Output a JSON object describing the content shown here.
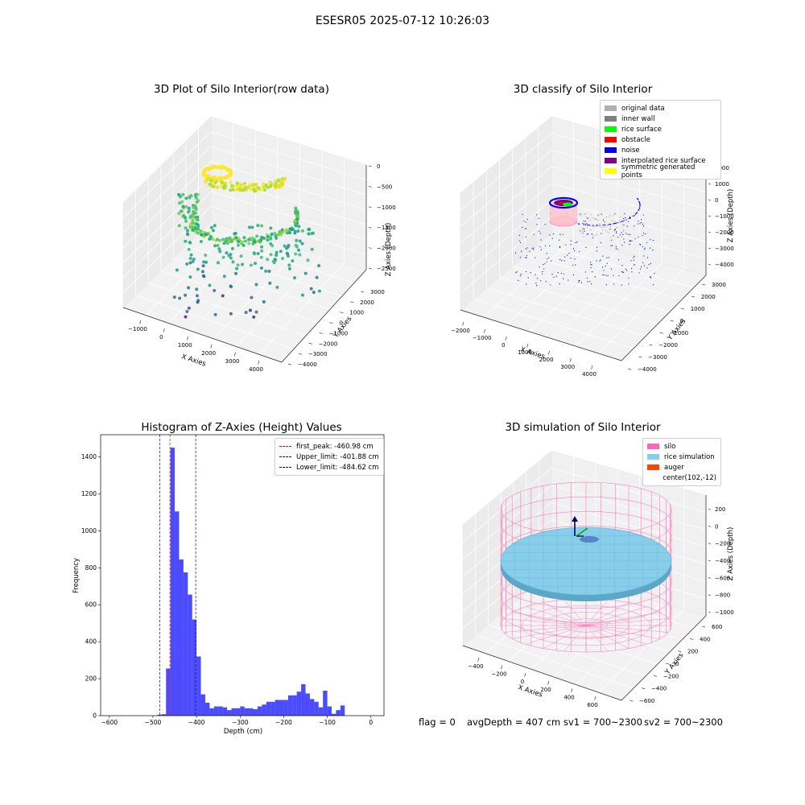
{
  "figure": {
    "title": "ESESR05 2025-07-12 10:26:03"
  },
  "panels": {
    "p1": {
      "title": "3D Plot of Silo Interior(row data)",
      "xlabel": "X Axies",
      "ylabel": "Y Axies",
      "zlabel": "Z Axies (Depth)",
      "xticks": [
        "−1000",
        "0",
        "1000",
        "2000",
        "3000",
        "4000"
      ],
      "yticks": [
        "−4000",
        "−3000",
        "−2000",
        "−1000",
        "0",
        "1000",
        "2000",
        "3000"
      ],
      "zticks": [
        "0",
        "−500",
        "−1000",
        "−1500",
        "−2000",
        "−2500"
      ]
    },
    "p2": {
      "title": "3D classify of Silo Interior",
      "xlabel": "X Axies",
      "ylabel": "Y Axies",
      "zlabel": "Z Axies (Depth)",
      "xticks": [
        "−2000",
        "−1000",
        "0",
        "1000",
        "2000",
        "3000",
        "4000"
      ],
      "yticks": [
        "−4000",
        "−3000",
        "−2000",
        "−1000",
        "0",
        "1000",
        "2000",
        "3000"
      ],
      "zticks": [
        "2000",
        "1000",
        "0",
        "−1000",
        "−2000",
        "−3000",
        "−4000"
      ],
      "legend": [
        {
          "label": "original data",
          "color": "#b0b0b0"
        },
        {
          "label": "inner wall",
          "color": "#808080"
        },
        {
          "label": "rice surface",
          "color": "#00ff00"
        },
        {
          "label": "obstacle",
          "color": "#ff0000"
        },
        {
          "label": "noise",
          "color": "#0000ff"
        },
        {
          "label": "interpolated rice surface",
          "color": "#800080"
        },
        {
          "label": "symmetric generated points",
          "color": "#ffff00"
        }
      ]
    },
    "p4": {
      "title": "3D simulation of Silo Interior",
      "xlabel": "X Axies",
      "ylabel": "Y Axies",
      "zlabel": "Z Axies (Depth)",
      "xticks": [
        "−400",
        "−200",
        "0",
        "200",
        "400",
        "600"
      ],
      "yticks": [
        "−600",
        "−400",
        "−200",
        "0",
        "200",
        "400",
        "600"
      ],
      "zticks": [
        "200",
        "0",
        "−200",
        "−400",
        "−600",
        "−800",
        "−1000"
      ],
      "legend": [
        {
          "label": "silo",
          "color": "#ff69b4"
        },
        {
          "label": "rice simulation",
          "color": "#87ceeb"
        },
        {
          "label": "auger",
          "color": "#ff4500"
        },
        {
          "label": "center(102,-12)",
          "color": ""
        }
      ]
    }
  },
  "chart_data": {
    "type": "bar",
    "title": "Histogram of Z-Axies (Height) Values",
    "xlabel": "Depth (cm)",
    "ylabel": "Frequency",
    "xlim": [
      -620,
      30
    ],
    "ylim": [
      0,
      1520
    ],
    "xticks": [
      -600,
      -500,
      -400,
      -300,
      -200,
      -100,
      0
    ],
    "yticks": [
      0,
      200,
      400,
      600,
      800,
      1000,
      1200,
      1400
    ],
    "bar_color": "#0000ff",
    "bins": [
      {
        "x": -490,
        "v": 5
      },
      {
        "x": -480,
        "v": 8
      },
      {
        "x": -470,
        "v": 255
      },
      {
        "x": -460,
        "v": 1450
      },
      {
        "x": -450,
        "v": 1105
      },
      {
        "x": -440,
        "v": 845
      },
      {
        "x": -430,
        "v": 775
      },
      {
        "x": -420,
        "v": 655
      },
      {
        "x": -410,
        "v": 520
      },
      {
        "x": -400,
        "v": 320
      },
      {
        "x": -390,
        "v": 115
      },
      {
        "x": -380,
        "v": 70
      },
      {
        "x": -370,
        "v": 40
      },
      {
        "x": -360,
        "v": 50
      },
      {
        "x": -350,
        "v": 50
      },
      {
        "x": -340,
        "v": 45
      },
      {
        "x": -330,
        "v": 30
      },
      {
        "x": -320,
        "v": 40
      },
      {
        "x": -310,
        "v": 40
      },
      {
        "x": -300,
        "v": 50
      },
      {
        "x": -290,
        "v": 40
      },
      {
        "x": -280,
        "v": 40
      },
      {
        "x": -270,
        "v": 35
      },
      {
        "x": -260,
        "v": 50
      },
      {
        "x": -250,
        "v": 60
      },
      {
        "x": -240,
        "v": 75
      },
      {
        "x": -230,
        "v": 75
      },
      {
        "x": -220,
        "v": 85
      },
      {
        "x": -210,
        "v": 85
      },
      {
        "x": -200,
        "v": 85
      },
      {
        "x": -190,
        "v": 110
      },
      {
        "x": -180,
        "v": 110
      },
      {
        "x": -170,
        "v": 130
      },
      {
        "x": -160,
        "v": 170
      },
      {
        "x": -150,
        "v": 120
      },
      {
        "x": -140,
        "v": 90
      },
      {
        "x": -130,
        "v": 75
      },
      {
        "x": -120,
        "v": 45
      },
      {
        "x": -110,
        "v": 135
      },
      {
        "x": -100,
        "v": 50
      },
      {
        "x": -90,
        "v": 10
      },
      {
        "x": -80,
        "v": 30
      },
      {
        "x": -70,
        "v": 55
      }
    ],
    "bin_width": 10,
    "lines": [
      {
        "label": "first_peak: -460.98 cm",
        "x": -460.98,
        "color": "#ff0000"
      },
      {
        "label": "Upper_limit: -401.88 cm",
        "x": -401.88,
        "color": "#0000aa"
      },
      {
        "label": "Lower_limit: -484.62 cm",
        "x": -484.62,
        "color": "#0000aa"
      }
    ]
  },
  "footer": {
    "flag": "flag = 0",
    "avg": "avgDepth = 407 cm",
    "sv1": "sv1 = 700~2300",
    "sv2": "sv2 = 700~2300"
  }
}
